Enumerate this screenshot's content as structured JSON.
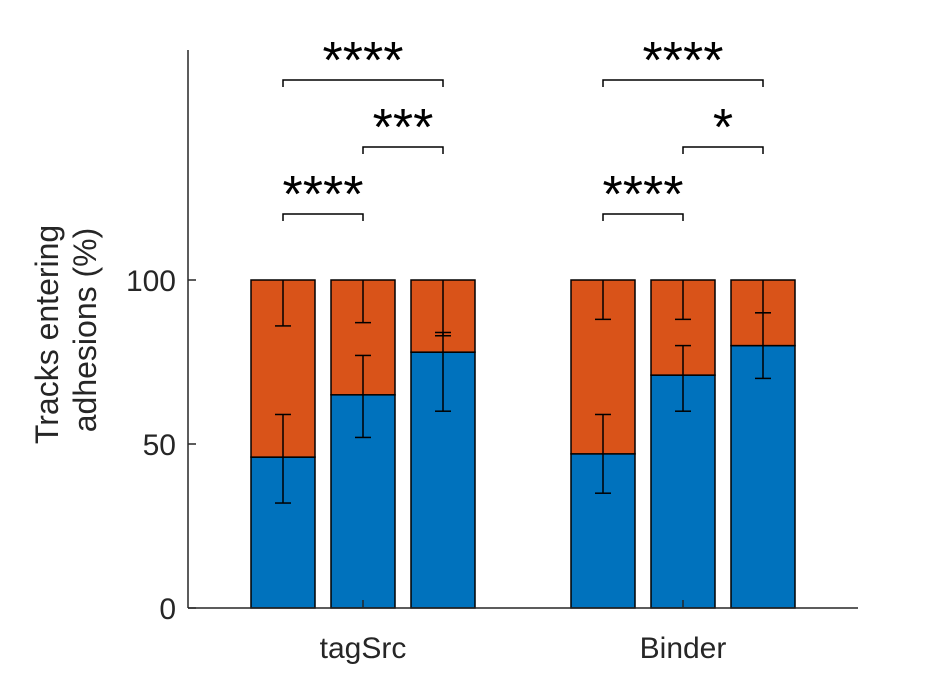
{
  "chart_data": {
    "type": "bar",
    "stacked": true,
    "ylabel": [
      "Tracks entering",
      "adhesions (%)"
    ],
    "ylim": [
      0,
      100
    ],
    "yticks": [
      0,
      50,
      100
    ],
    "groups": [
      "tagSrc",
      "Binder"
    ],
    "bars_per_group": 3,
    "series": [
      {
        "name": "",
        "color": "#0072BD",
        "values": [
          [
            46,
            65,
            78
          ],
          [
            47,
            71,
            80
          ]
        ],
        "error": [
          [
            [
              32,
              59
            ],
            [
              52,
              77
            ],
            [
              60,
              84
            ]
          ],
          [
            [
              35,
              59
            ],
            [
              60,
              80
            ],
            [
              70,
              90
            ]
          ]
        ]
      },
      {
        "name": "",
        "color": "#D95319",
        "values": [
          [
            54,
            35,
            22
          ],
          [
            53,
            29,
            20
          ]
        ],
        "error_top": [
          [
            86,
            87,
            83
          ],
          [
            88,
            88,
            90
          ]
        ]
      }
    ],
    "significance": [
      {
        "group": 0,
        "from": 0,
        "to": 2,
        "level": 1,
        "label": "****"
      },
      {
        "group": 0,
        "from": 1,
        "to": 2,
        "level": 0,
        "label": "***"
      },
      {
        "group": 0,
        "from": 0,
        "to": 1,
        "level": -1,
        "label": "****"
      },
      {
        "group": 1,
        "from": 0,
        "to": 2,
        "level": 1,
        "label": "****"
      },
      {
        "group": 1,
        "from": 1,
        "to": 2,
        "level": 0,
        "label": "*"
      },
      {
        "group": 1,
        "from": 0,
        "to": 1,
        "level": -1,
        "label": "****"
      }
    ]
  }
}
